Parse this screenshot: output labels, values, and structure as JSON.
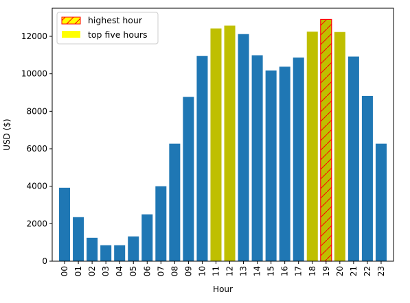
{
  "chart_data": {
    "type": "bar",
    "title": "",
    "xlabel": "Hour",
    "ylabel": "USD ($)",
    "ylim": [
      0,
      13500
    ],
    "yticks": [
      0,
      2000,
      4000,
      6000,
      8000,
      10000,
      12000
    ],
    "ytick_labels": [
      "0",
      "2000",
      "4000",
      "6000",
      "8000",
      "10000",
      "12000"
    ],
    "categories": [
      "00",
      "01",
      "02",
      "03",
      "04",
      "05",
      "06",
      "07",
      "08",
      "09",
      "10",
      "11",
      "12",
      "13",
      "14",
      "15",
      "16",
      "17",
      "18",
      "19",
      "20",
      "21",
      "22",
      "23"
    ],
    "values": [
      3920,
      2350,
      1250,
      850,
      850,
      1320,
      2500,
      4000,
      6270,
      8770,
      10950,
      12420,
      12570,
      12120,
      10990,
      10180,
      10380,
      10870,
      12250,
      12900,
      12230,
      10920,
      8820,
      6270
    ],
    "top_five_indices": [
      11,
      12,
      18,
      19,
      20
    ],
    "highest_index": 19,
    "grid": false,
    "legend": {
      "placement": "top-left",
      "entries": [
        {
          "label": "highest hour",
          "style": "hatched",
          "facecolor": "#ffff00",
          "edgecolor": "#ff0000"
        },
        {
          "label": "top five hours",
          "style": "solid",
          "facecolor": "#ffff00",
          "edgecolor": "#ffff00"
        }
      ]
    },
    "colors": {
      "default_bar": "#1f77b4",
      "top_bar": "#bfbf00",
      "highest_edge": "#ff0000",
      "hatch": "#ff0000",
      "legend_fill": "#ffff00"
    }
  }
}
